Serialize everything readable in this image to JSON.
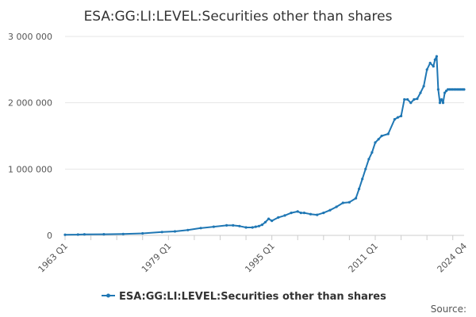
{
  "chart_data": {
    "type": "line",
    "title": "ESA:GG:LI:LEVEL:Securities other than shares",
    "xlabel": "",
    "ylabel": "",
    "ylim": [
      0,
      3000000
    ],
    "y_ticks": [
      0,
      1000000,
      2000000,
      3000000
    ],
    "y_tick_labels": [
      "0",
      "1 000 000",
      "2 000 000",
      "3 000 000"
    ],
    "x_range": [
      1963.0,
      2024.75
    ],
    "x_tick_labels": [
      "1963 Q1",
      "1979 Q1",
      "1995 Q1",
      "2011 Q1",
      "2024 Q4"
    ],
    "x_tick_positions": [
      1963.0,
      1979.0,
      1995.0,
      2011.0,
      2024.75
    ],
    "grid": "horizontal",
    "legend_position": "bottom",
    "series": [
      {
        "name": "ESA:GG:LI:LEVEL:Securities other than shares",
        "color": "#1f77b4",
        "x": [
          1963.0,
          1965.0,
          1966.0,
          1969.0,
          1972.0,
          1975.0,
          1978.0,
          1980.0,
          1982.0,
          1984.0,
          1986.0,
          1988.0,
          1989.0,
          1990.0,
          1991.0,
          1992.0,
          1992.5,
          1993.0,
          1993.5,
          1994.0,
          1994.5,
          1995.0,
          1996.0,
          1997.0,
          1998.0,
          1999.0,
          1999.5,
          2000.0,
          2001.0,
          2002.0,
          2003.0,
          2004.0,
          2005.0,
          2006.0,
          2007.0,
          2008.0,
          2008.5,
          2009.0,
          2009.5,
          2010.0,
          2010.5,
          2011.0,
          2011.5,
          2012.0,
          2013.0,
          2014.0,
          2014.5,
          2015.0,
          2015.5,
          2016.0,
          2016.5,
          2017.0,
          2017.5,
          2018.0,
          2018.5,
          2019.0,
          2019.5,
          2020.0,
          2020.25,
          2020.5,
          2020.75,
          2021.0,
          2021.25,
          2021.5,
          2021.75,
          2022.0,
          2022.25,
          2022.5,
          2022.75,
          2023.0,
          2023.25,
          2023.5,
          2023.75,
          2024.0,
          2024.25,
          2024.5,
          2024.75
        ],
        "values": [
          10000,
          12000,
          15000,
          17000,
          20000,
          30000,
          50000,
          60000,
          80000,
          110000,
          130000,
          150000,
          150000,
          140000,
          120000,
          120000,
          130000,
          140000,
          160000,
          200000,
          250000,
          220000,
          270000,
          300000,
          340000,
          360000,
          340000,
          340000,
          320000,
          310000,
          340000,
          380000,
          430000,
          490000,
          500000,
          560000,
          700000,
          850000,
          1000000,
          1150000,
          1250000,
          1400000,
          1450000,
          1500000,
          1530000,
          1750000,
          1780000,
          1800000,
          2050000,
          2050000,
          2000000,
          2050000,
          2060000,
          2150000,
          2250000,
          2500000,
          2600000,
          2550000,
          2650000,
          2700000,
          2200000,
          2000000,
          2050000,
          2000000,
          2150000,
          2180000,
          2200000,
          2200000,
          2200000,
          2200000,
          2200000,
          2200000,
          2200000,
          2200000,
          2200000,
          2200000,
          2200000
        ]
      }
    ]
  },
  "source_label": "Source:"
}
